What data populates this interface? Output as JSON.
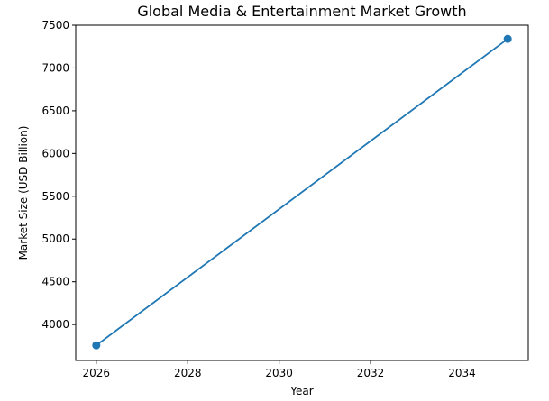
{
  "chart_data": {
    "type": "line",
    "title": "Global Media & Entertainment Market Growth",
    "xlabel": "Year",
    "ylabel": "Market Size (USD Billion)",
    "x": [
      2026,
      2035
    ],
    "series": [
      {
        "name": "Market Size",
        "values": [
          3757,
          7340
        ],
        "color": "#1f77b4",
        "marker": "circle"
      }
    ],
    "xticks": [
      2026,
      2028,
      2030,
      2032,
      2034
    ],
    "yticks": [
      4000,
      4500,
      5000,
      5500,
      6000,
      6500,
      7000,
      7500
    ],
    "xlim": [
      2025.55,
      2035.45
    ],
    "ylim": [
      3580,
      7500
    ],
    "grid": false,
    "legend": null
  }
}
